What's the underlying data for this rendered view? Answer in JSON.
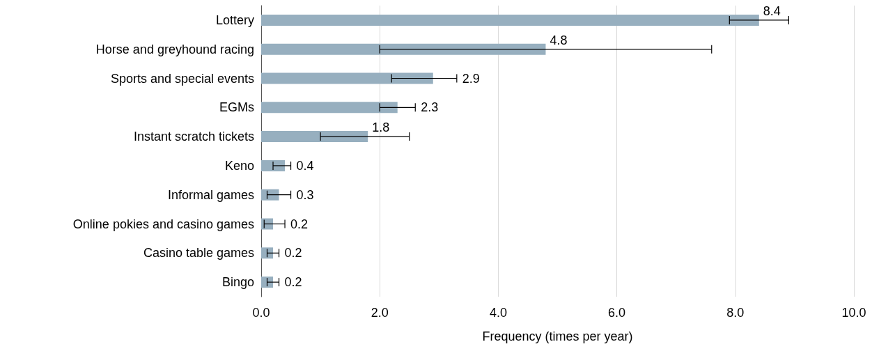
{
  "chart_data": {
    "type": "bar",
    "orientation": "horizontal",
    "xlabel": "Frequency (times per year)",
    "categories": [
      "Lottery",
      "Horse and greyhound racing",
      "Sports and special events",
      "EGMs",
      "Instant scratch tickets",
      "Keno",
      "Informal games",
      "Online pokies and casino games",
      "Casino table games",
      "Bingo"
    ],
    "values": [
      8.4,
      4.8,
      2.9,
      2.3,
      1.8,
      0.4,
      0.3,
      0.2,
      0.2,
      0.2
    ],
    "errors": [
      [
        7.9,
        8.9
      ],
      [
        2.0,
        7.6
      ],
      [
        2.2,
        3.3
      ],
      [
        2.0,
        2.6
      ],
      [
        1.0,
        2.5
      ],
      [
        0.2,
        0.5
      ],
      [
        0.1,
        0.5
      ],
      [
        0.05,
        0.4
      ],
      [
        0.1,
        0.3
      ],
      [
        0.1,
        0.3
      ]
    ],
    "color": "#97afbf",
    "data_labels": true,
    "xlim": [
      0,
      10
    ],
    "xticks": [
      {
        "value": 0,
        "label": "0.0"
      },
      {
        "value": 2,
        "label": "2.0"
      },
      {
        "value": 4,
        "label": "4.0"
      },
      {
        "value": 6,
        "label": "6.0"
      },
      {
        "value": 8,
        "label": "8.0"
      },
      {
        "value": 10,
        "label": "10.0"
      }
    ],
    "grid": "x"
  }
}
